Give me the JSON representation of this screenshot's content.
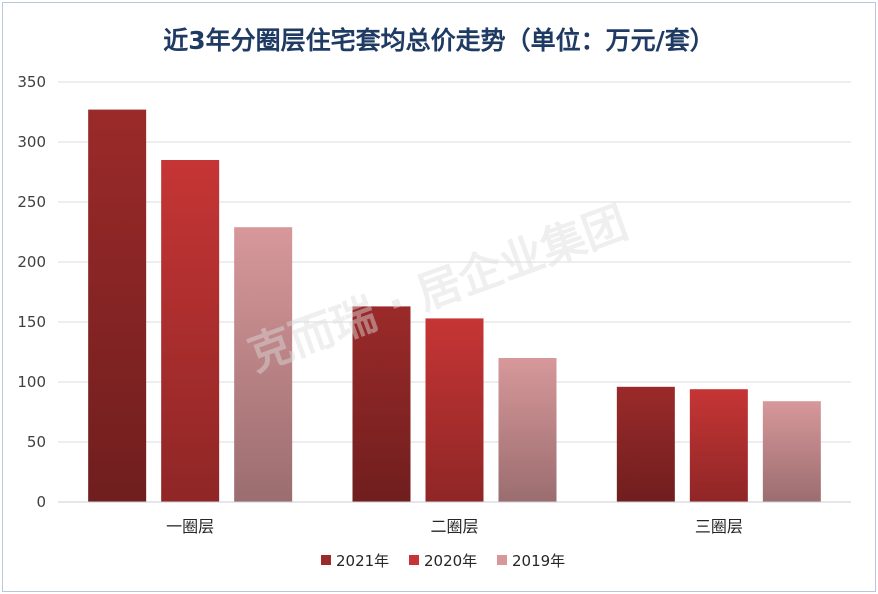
{
  "chart_data": {
    "type": "bar",
    "title": "近3年分圈层住宅套均总价走势（单位：万元/套）",
    "categories": [
      "一圈层",
      "二圈层",
      "三圈层"
    ],
    "series": [
      {
        "name": "2021年",
        "values": [
          327,
          163,
          96
        ],
        "color": "#9b2a2a"
      },
      {
        "name": "2020年",
        "values": [
          285,
          153,
          94
        ],
        "color": "#c63535"
      },
      {
        "name": "2019年",
        "values": [
          229,
          120,
          84
        ],
        "color": "#d7989a"
      }
    ],
    "ylim": [
      0,
      350
    ],
    "yticks": [
      0,
      50,
      100,
      150,
      200,
      250,
      300,
      350
    ],
    "xlabel": "",
    "ylabel": "",
    "grid": true,
    "legend_position": "bottom",
    "watermark": "克而瑞 · 居企业集团"
  }
}
